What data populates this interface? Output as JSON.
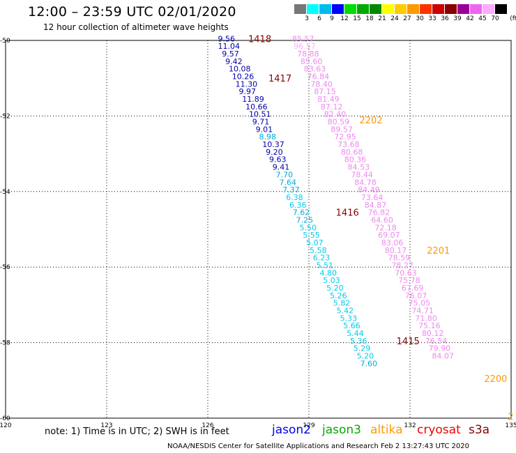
{
  "title": "12:00 – 23:59 UTC 02/01/2020",
  "subtitle": "12 hour collection of altimeter wave heights",
  "legend": {
    "unit": "(ft)",
    "labels": [
      "3",
      "6",
      "9",
      "12",
      "15",
      "18",
      "21",
      "24",
      "27",
      "30",
      "33",
      "36",
      "39",
      "42",
      "45",
      "70"
    ],
    "colors": [
      "#777777",
      "#00ffff",
      "#00bbee",
      "#0000ff",
      "#00dd00",
      "#00aa00",
      "#008800",
      "#ffff00",
      "#ffcc00",
      "#ff9900",
      "#ff3300",
      "#cc0000",
      "#880000",
      "#990099",
      "#ee66ee",
      "#ffaaff",
      "#000000"
    ]
  },
  "note": "note: 1) Time is in UTC; 2) SWH is in feet",
  "satellites": [
    {
      "name": "jason2",
      "color": "#0000ee"
    },
    {
      "name": "jason3",
      "color": "#00aa00"
    },
    {
      "name": "altika",
      "color": "#ff9900"
    },
    {
      "name": "cryosat",
      "color": "#ee0000"
    },
    {
      "name": "s3a",
      "color": "#880000"
    }
  ],
  "credit": "NOAA/NESDIS Center for Satellite Applications and Research   Feb  2 13:27:43 UTC 2020",
  "chart_data": {
    "type": "scatter",
    "xlim": [
      120,
      135
    ],
    "ylim": [
      -60,
      -50
    ],
    "x_ticks": [
      "120",
      "123",
      "126",
      "129",
      "132",
      "135"
    ],
    "y_ticks": [
      "-50",
      "-52",
      "-54",
      "-56",
      "-58",
      "-60"
    ],
    "grid": true,
    "track_labels": [
      {
        "text": "1418",
        "lon": 127.2,
        "lat": -49.95,
        "color": "#880000"
      },
      {
        "text": "1417",
        "lon": 127.8,
        "lat": -51.0,
        "color": "#880000"
      },
      {
        "text": "1416",
        "lon": 129.8,
        "lat": -54.55,
        "color": "#880000"
      },
      {
        "text": "1415",
        "lon": 131.6,
        "lat": -57.95,
        "color": "#880000"
      },
      {
        "text": "2202",
        "lon": 130.5,
        "lat": -52.1,
        "color": "#ff9900"
      },
      {
        "text": "2201",
        "lon": 132.5,
        "lat": -55.55,
        "color": "#ff9900"
      },
      {
        "text": "2200",
        "lon": 134.2,
        "lat": -58.95,
        "color": "#ff9900"
      },
      {
        "text": "2",
        "lon": 134.9,
        "lat": -59.95,
        "color": "#ff9900"
      }
    ],
    "series": [
      {
        "name": "s3a",
        "points": [
          {
            "lon": 126.3,
            "lat": -49.95,
            "v": "9.56",
            "c": "#0000aa"
          },
          {
            "lon": 126.3,
            "lat": -50.15,
            "v": "11.04",
            "c": "#0000aa"
          },
          {
            "lon": 126.42,
            "lat": -50.35,
            "v": "9.57",
            "c": "#0000aa"
          },
          {
            "lon": 126.52,
            "lat": -50.55,
            "v": "9.42",
            "c": "#0000aa"
          },
          {
            "lon": 126.62,
            "lat": -50.75,
            "v": "10.08",
            "c": "#0000aa"
          },
          {
            "lon": 126.72,
            "lat": -50.95,
            "v": "10.26",
            "c": "#0000aa"
          },
          {
            "lon": 126.82,
            "lat": -51.15,
            "v": "11.30",
            "c": "#0000aa"
          },
          {
            "lon": 126.92,
            "lat": -51.35,
            "v": "9.97",
            "c": "#0000aa"
          },
          {
            "lon": 127.02,
            "lat": -51.55,
            "v": "11.89",
            "c": "#0000aa"
          },
          {
            "lon": 127.12,
            "lat": -51.75,
            "v": "10.66",
            "c": "#0000aa"
          },
          {
            "lon": 127.22,
            "lat": -51.95,
            "v": "10.51",
            "c": "#0000aa"
          },
          {
            "lon": 127.32,
            "lat": -52.15,
            "v": "9.71",
            "c": "#0000aa"
          },
          {
            "lon": 127.42,
            "lat": -52.35,
            "v": "9.01",
            "c": "#0000aa"
          },
          {
            "lon": 127.52,
            "lat": -52.55,
            "v": "8.98",
            "c": "#00aadd"
          },
          {
            "lon": 127.62,
            "lat": -52.75,
            "v": "10.37",
            "c": "#0000aa"
          },
          {
            "lon": 127.72,
            "lat": -52.95,
            "v": "9.20",
            "c": "#0000aa"
          },
          {
            "lon": 127.82,
            "lat": -53.15,
            "v": "9.63",
            "c": "#0000aa"
          },
          {
            "lon": 127.92,
            "lat": -53.35,
            "v": "9.41",
            "c": "#0000aa"
          },
          {
            "lon": 128.02,
            "lat": -53.55,
            "v": "7.70",
            "c": "#00aadd"
          },
          {
            "lon": 128.12,
            "lat": -53.75,
            "v": "7.64",
            "c": "#00aadd"
          },
          {
            "lon": 128.22,
            "lat": -53.95,
            "v": "7.37",
            "c": "#00aadd"
          },
          {
            "lon": 128.32,
            "lat": -54.15,
            "v": "6.38",
            "c": "#00ccee"
          },
          {
            "lon": 128.42,
            "lat": -54.35,
            "v": "6.36",
            "c": "#00ccee"
          },
          {
            "lon": 128.52,
            "lat": -54.55,
            "v": "7.62",
            "c": "#00aadd"
          },
          {
            "lon": 128.62,
            "lat": -54.75,
            "v": "7.25",
            "c": "#00aadd"
          },
          {
            "lon": 128.72,
            "lat": -54.95,
            "v": "5.50",
            "c": "#00ccee"
          },
          {
            "lon": 128.82,
            "lat": -55.15,
            "v": "5.55",
            "c": "#00ccee"
          },
          {
            "lon": 128.92,
            "lat": -55.35,
            "v": "5.07",
            "c": "#00ccee"
          },
          {
            "lon": 129.02,
            "lat": -55.55,
            "v": "5.58",
            "c": "#00ccee"
          },
          {
            "lon": 129.12,
            "lat": -55.75,
            "v": "6.23",
            "c": "#00ccee"
          },
          {
            "lon": 129.22,
            "lat": -55.95,
            "v": "5.51",
            "c": "#00ccee"
          },
          {
            "lon": 129.32,
            "lat": -56.15,
            "v": "4.80",
            "c": "#00ccee"
          },
          {
            "lon": 129.42,
            "lat": -56.35,
            "v": "5.03",
            "c": "#00ccee"
          },
          {
            "lon": 129.52,
            "lat": -56.55,
            "v": "5.20",
            "c": "#00ccee"
          },
          {
            "lon": 129.62,
            "lat": -56.75,
            "v": "5.26",
            "c": "#00ccee"
          },
          {
            "lon": 129.72,
            "lat": -56.95,
            "v": "5.82",
            "c": "#00ccee"
          },
          {
            "lon": 129.82,
            "lat": -57.15,
            "v": "5.42",
            "c": "#00ccee"
          },
          {
            "lon": 129.92,
            "lat": -57.35,
            "v": "5.33",
            "c": "#00ccee"
          },
          {
            "lon": 130.02,
            "lat": -57.55,
            "v": "5.66",
            "c": "#00ccee"
          },
          {
            "lon": 130.12,
            "lat": -57.75,
            "v": "5.44",
            "c": "#00ccee"
          },
          {
            "lon": 130.22,
            "lat": -57.95,
            "v": "5.36",
            "c": "#00ccee"
          },
          {
            "lon": 130.32,
            "lat": -58.15,
            "v": "5.29",
            "c": "#00ccee"
          },
          {
            "lon": 130.42,
            "lat": -58.35,
            "v": "5.20",
            "c": "#00ccee"
          },
          {
            "lon": 130.52,
            "lat": -58.55,
            "v": "7.60",
            "c": "#00aadd"
          }
        ]
      },
      {
        "name": "altika",
        "points": [
          {
            "lon": 128.5,
            "lat": -49.95,
            "v": "85.57",
            "c": "#ee88ee"
          },
          {
            "lon": 128.55,
            "lat": -50.15,
            "v": "96.57",
            "c": "#ffaaff"
          },
          {
            "lon": 128.65,
            "lat": -50.35,
            "v": "78.88",
            "c": "#ee88ee"
          },
          {
            "lon": 128.75,
            "lat": -50.55,
            "v": "85.60",
            "c": "#ee88ee"
          },
          {
            "lon": 128.85,
            "lat": -50.75,
            "v": "83.63",
            "c": "#ee88ee"
          },
          {
            "lon": 128.95,
            "lat": -50.95,
            "v": "76.84",
            "c": "#ee88ee"
          },
          {
            "lon": 129.05,
            "lat": -51.15,
            "v": "78.40",
            "c": "#ee88ee"
          },
          {
            "lon": 129.15,
            "lat": -51.35,
            "v": "87.15",
            "c": "#ee88ee"
          },
          {
            "lon": 129.25,
            "lat": -51.55,
            "v": "81.49",
            "c": "#ee88ee"
          },
          {
            "lon": 129.35,
            "lat": -51.75,
            "v": "87.12",
            "c": "#ee88ee"
          },
          {
            "lon": 129.45,
            "lat": -51.95,
            "v": "82.40",
            "c": "#ee88ee"
          },
          {
            "lon": 129.55,
            "lat": -52.15,
            "v": "80.59",
            "c": "#ee88ee"
          },
          {
            "lon": 129.65,
            "lat": -52.35,
            "v": "89.57",
            "c": "#ee88ee"
          },
          {
            "lon": 129.75,
            "lat": -52.55,
            "v": "72.95",
            "c": "#ee88ee"
          },
          {
            "lon": 129.85,
            "lat": -52.75,
            "v": "73.68",
            "c": "#ee88ee"
          },
          {
            "lon": 129.95,
            "lat": -52.95,
            "v": "80.68",
            "c": "#ee88ee"
          },
          {
            "lon": 130.05,
            "lat": -53.15,
            "v": "80.36",
            "c": "#ee88ee"
          },
          {
            "lon": 130.15,
            "lat": -53.35,
            "v": "84.53",
            "c": "#ee88ee"
          },
          {
            "lon": 130.25,
            "lat": -53.55,
            "v": "78.44",
            "c": "#ee88ee"
          },
          {
            "lon": 130.35,
            "lat": -53.75,
            "v": "84.78",
            "c": "#ee88ee"
          },
          {
            "lon": 130.45,
            "lat": -53.95,
            "v": "84.49",
            "c": "#ee88ee"
          },
          {
            "lon": 130.55,
            "lat": -54.15,
            "v": "73.64",
            "c": "#ee88ee"
          },
          {
            "lon": 130.65,
            "lat": -54.35,
            "v": "84.87",
            "c": "#ee88ee"
          },
          {
            "lon": 130.75,
            "lat": -54.55,
            "v": "76.82",
            "c": "#ee88ee"
          },
          {
            "lon": 130.85,
            "lat": -54.75,
            "v": "64.60",
            "c": "#ee88ee"
          },
          {
            "lon": 130.95,
            "lat": -54.95,
            "v": "72.18",
            "c": "#ee88ee"
          },
          {
            "lon": 131.05,
            "lat": -55.15,
            "v": "69.07",
            "c": "#ee88ee"
          },
          {
            "lon": 131.15,
            "lat": -55.35,
            "v": "83.06",
            "c": "#ee88ee"
          },
          {
            "lon": 131.25,
            "lat": -55.55,
            "v": "80.17",
            "c": "#ee88ee"
          },
          {
            "lon": 131.35,
            "lat": -55.75,
            "v": "78.59",
            "c": "#ee88ee"
          },
          {
            "lon": 131.45,
            "lat": -55.95,
            "v": "78.27",
            "c": "#ee88ee"
          },
          {
            "lon": 131.55,
            "lat": -56.15,
            "v": "70.63",
            "c": "#ee88ee"
          },
          {
            "lon": 131.65,
            "lat": -56.35,
            "v": "75.78",
            "c": "#ee88ee"
          },
          {
            "lon": 131.75,
            "lat": -56.55,
            "v": "67.69",
            "c": "#ee88ee"
          },
          {
            "lon": 131.85,
            "lat": -56.75,
            "v": "76.07",
            "c": "#ee88ee"
          },
          {
            "lon": 131.95,
            "lat": -56.95,
            "v": "75.05",
            "c": "#ee88ee"
          },
          {
            "lon": 132.05,
            "lat": -57.15,
            "v": "74.71",
            "c": "#ee88ee"
          },
          {
            "lon": 132.15,
            "lat": -57.35,
            "v": "71.80",
            "c": "#ee88ee"
          },
          {
            "lon": 132.25,
            "lat": -57.55,
            "v": "75.16",
            "c": "#ee88ee"
          },
          {
            "lon": 132.35,
            "lat": -57.75,
            "v": "80.12",
            "c": "#ee88ee"
          },
          {
            "lon": 132.45,
            "lat": -57.95,
            "v": "76.54",
            "c": "#ee88ee"
          },
          {
            "lon": 132.55,
            "lat": -58.15,
            "v": "79.90",
            "c": "#ee88ee"
          },
          {
            "lon": 132.65,
            "lat": -58.35,
            "v": "84.07",
            "c": "#ee88ee"
          }
        ]
      }
    ]
  }
}
